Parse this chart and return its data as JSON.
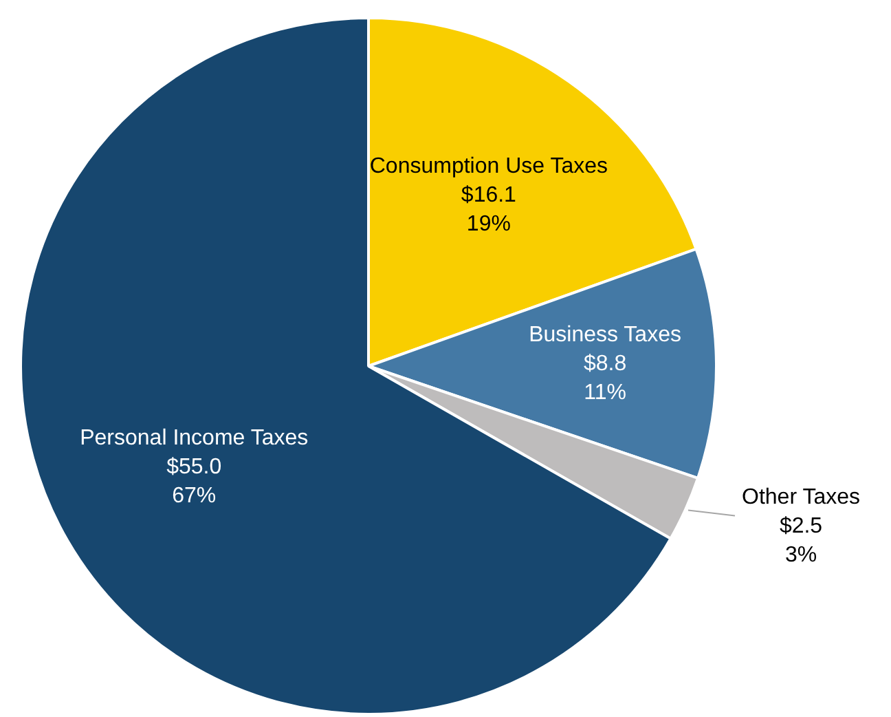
{
  "chart_data": {
    "type": "pie",
    "categories": [
      "Consumption Use Taxes",
      "Business Taxes",
      "Other Taxes",
      "Personal Income Taxes"
    ],
    "values": [
      16.1,
      8.8,
      2.5,
      55.0
    ],
    "colors": [
      "#f9ce00",
      "#4479a5",
      "#bebcbc",
      "#17476f"
    ],
    "value_labels": [
      "$16.1\n19%",
      "$8.8\n11%",
      "$2.5\n3%",
      "$55.0\n67%"
    ],
    "legend": false
  }
}
